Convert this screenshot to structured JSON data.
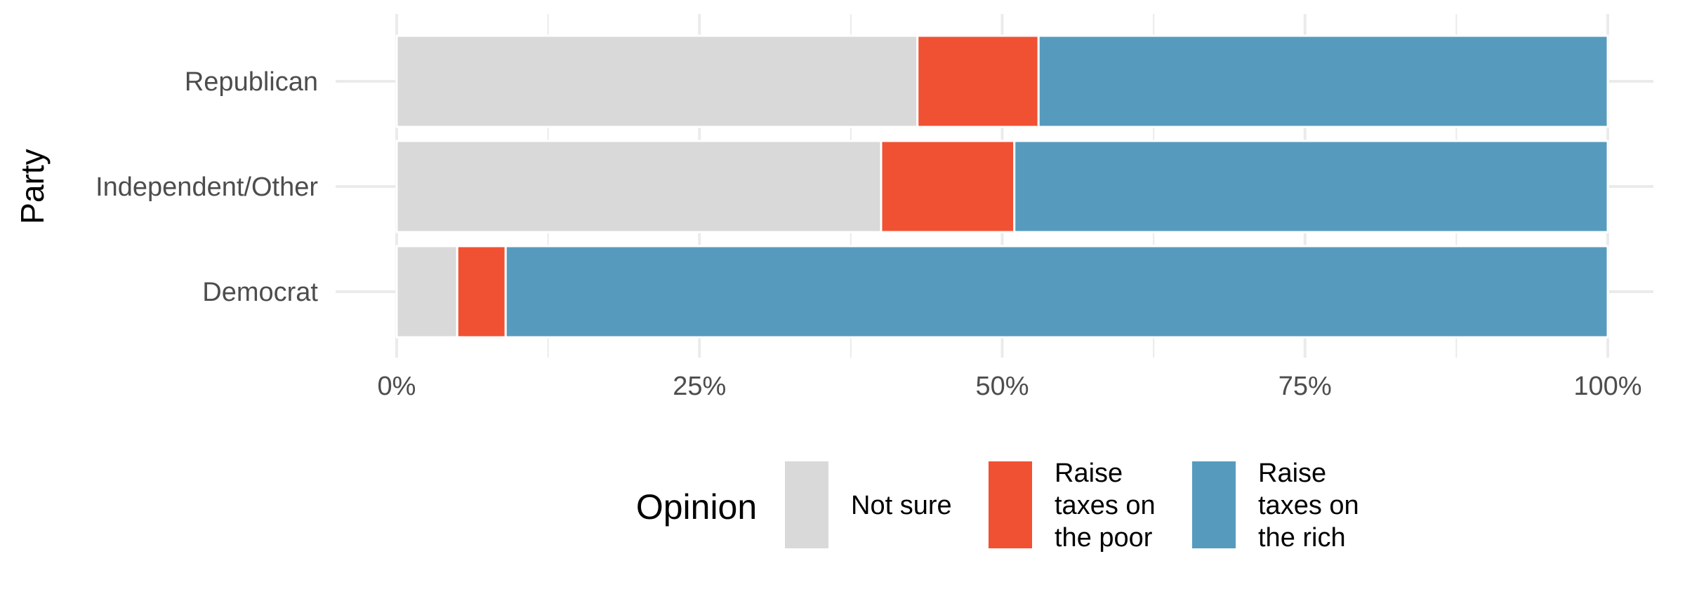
{
  "chart_data": {
    "type": "bar",
    "orientation": "horizontal",
    "stacked": "percent",
    "title": "",
    "xlabel": "",
    "ylabel": "Party",
    "categories": [
      "Republican",
      "Independent/Other",
      "Democrat"
    ],
    "series": [
      {
        "name": "Not sure",
        "color": "#d9d9d9",
        "values": [
          43.0,
          40.0,
          5.0
        ]
      },
      {
        "name": "Raise taxes on the poor",
        "color": "#f05133",
        "values": [
          10.0,
          11.0,
          4.0
        ]
      },
      {
        "name": "Raise taxes on the rich",
        "color": "#569bbd",
        "values": [
          47.0,
          49.0,
          91.0
        ]
      }
    ],
    "xlim": [
      0,
      100
    ],
    "x_ticks": [
      0,
      25,
      50,
      75,
      100
    ],
    "x_tick_labels": [
      "0%",
      "25%",
      "50%",
      "75%",
      "100%"
    ],
    "grid": true,
    "legend": {
      "title": "Opinion",
      "placement": "bottom",
      "entries": [
        [
          "Not sure"
        ],
        [
          "Raise",
          "taxes on",
          "the poor"
        ],
        [
          "Raise",
          "taxes on",
          "the rich"
        ]
      ]
    }
  }
}
